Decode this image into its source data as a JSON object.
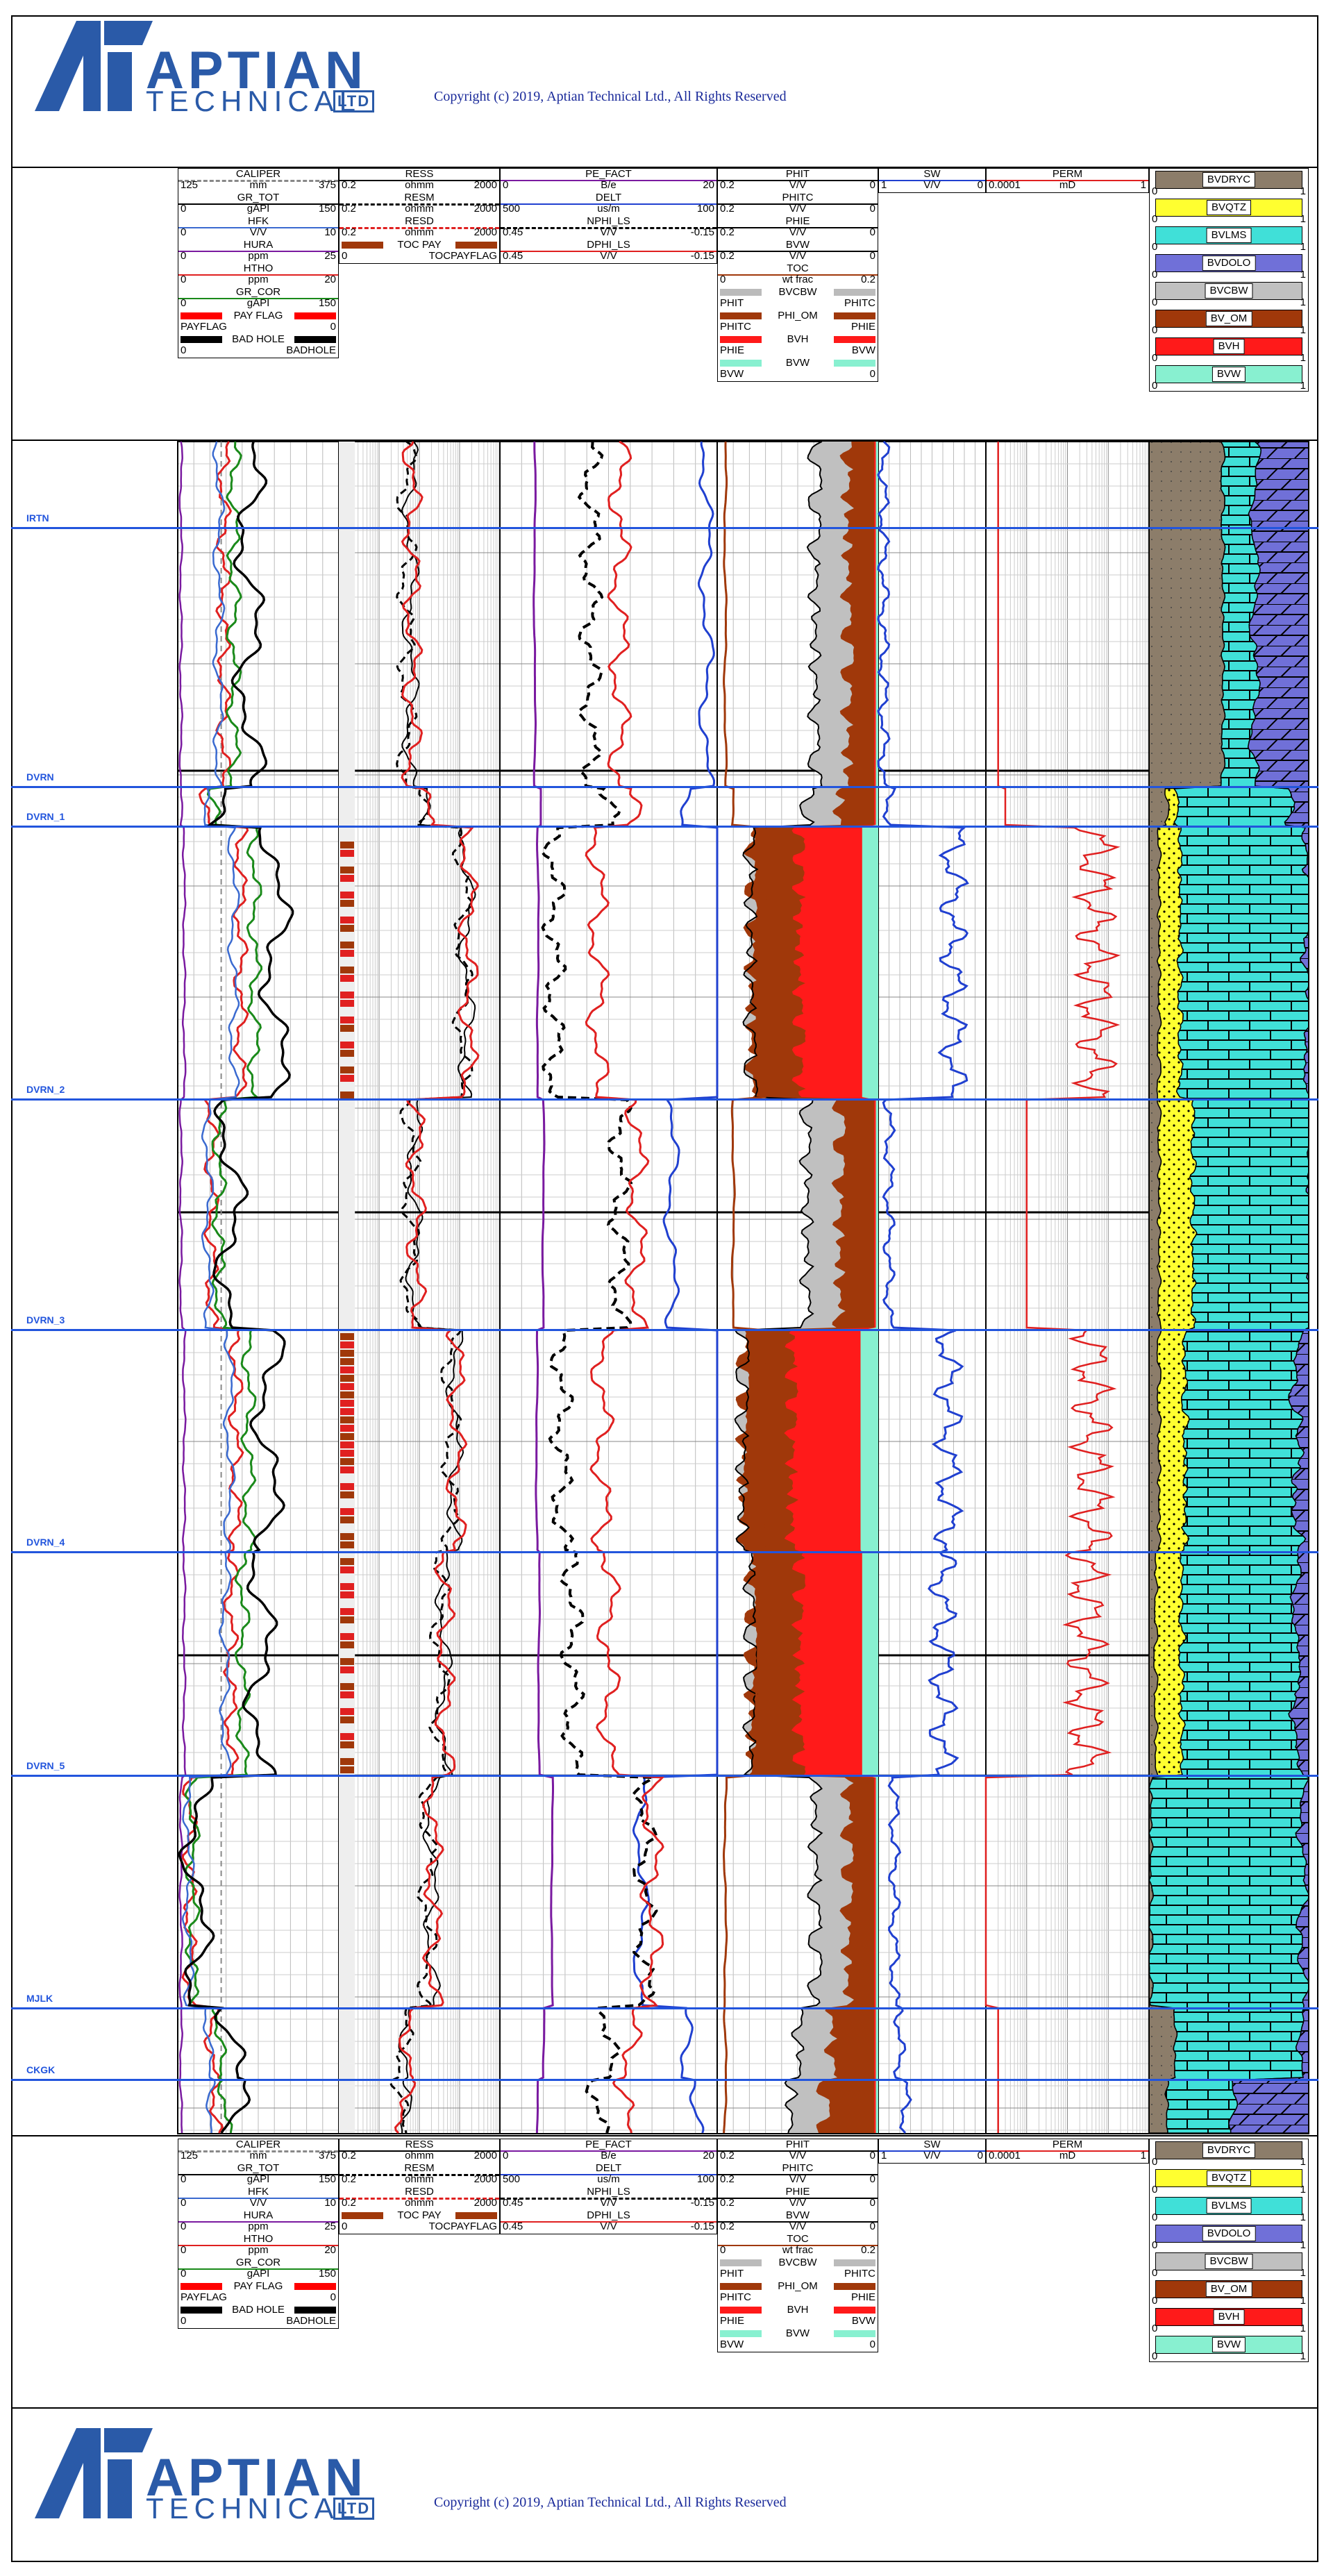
{
  "branding": {
    "logo_main": "APTIAN",
    "logo_sub": "TECHNICAL",
    "logo_ltd": "LTD",
    "copyright": "Copyright (c) 2019, Aptian Technical Ltd., All Rights Reserved",
    "colors": {
      "logo_blue": "#2a5aa8",
      "copyright_blue": "#1a2a9a"
    }
  },
  "tracks": [
    {
      "id": "t1",
      "curves": [
        {
          "name": "CALIPER",
          "lo": "125",
          "unit": "mm",
          "hi": "375",
          "color": "#888888",
          "style": "dash"
        },
        {
          "name": "GR_TOT",
          "lo": "0",
          "unit": "gAPI",
          "hi": "150",
          "color": "#000000",
          "style": "solid"
        },
        {
          "name": "HFK",
          "lo": "0",
          "unit": "V/V",
          "hi": "10",
          "color": "#3a6ad0",
          "style": "solid"
        },
        {
          "name": "HURA",
          "lo": "0",
          "unit": "ppm",
          "hi": "25",
          "color": "#7a1aa0",
          "style": "solid"
        },
        {
          "name": "HTHO",
          "lo": "0",
          "unit": "ppm",
          "hi": "20",
          "color": "#e02020",
          "style": "solid"
        },
        {
          "name": "GR_COR",
          "lo": "0",
          "unit": "gAPI",
          "hi": "150",
          "color": "#1a8a1a",
          "style": "solid"
        },
        {
          "name": "PAY FLAG",
          "lo": "PAYFLAG",
          "unit": "",
          "hi": "0",
          "color": "#ff0000",
          "style": "fill"
        },
        {
          "name": "BAD HOLE",
          "lo": "0",
          "unit": "",
          "hi": "BADHOLE",
          "color": "#000000",
          "style": "fill"
        }
      ]
    },
    {
      "id": "t2",
      "curves": [
        {
          "name": "RESS",
          "lo": "0.2",
          "unit": "ohmm",
          "hi": "2000",
          "color": "#000000",
          "style": "solid"
        },
        {
          "name": "RESM",
          "lo": "0.2",
          "unit": "ohmm",
          "hi": "2000",
          "color": "#000000",
          "style": "dash"
        },
        {
          "name": "RESD",
          "lo": "0.2",
          "unit": "ohmm",
          "hi": "2000",
          "color": "#e02020",
          "style": "dash"
        },
        {
          "name": "TOC PAY",
          "lo": "0",
          "unit": "",
          "hi": "TOCPAYFLAG",
          "color": "#a0380a",
          "style": "fill"
        }
      ]
    },
    {
      "id": "t3",
      "curves": [
        {
          "name": "PE_FACT",
          "lo": "0",
          "unit": "B/e",
          "hi": "20",
          "color": "#7a1aa0",
          "style": "solid"
        },
        {
          "name": "DELT",
          "lo": "500",
          "unit": "us/m",
          "hi": "100",
          "color": "#2040d0",
          "style": "solid"
        },
        {
          "name": "NPHI_LS",
          "lo": "0.45",
          "unit": "V/V",
          "hi": "-0.15",
          "color": "#000000",
          "style": "dash"
        },
        {
          "name": "DPHI_LS",
          "lo": "0.45",
          "unit": "V/V",
          "hi": "-0.15",
          "color": "#e02020",
          "style": "solid"
        }
      ]
    },
    {
      "id": "t4",
      "curves": [
        {
          "name": "PHIT",
          "lo": "0.2",
          "unit": "V/V",
          "hi": "0",
          "color": "#000000",
          "style": "solid"
        },
        {
          "name": "PHITC",
          "lo": "0.2",
          "unit": "V/V",
          "hi": "0",
          "color": "#000000",
          "style": "solid"
        },
        {
          "name": "PHIE",
          "lo": "0.2",
          "unit": "V/V",
          "hi": "0",
          "color": "#000000",
          "style": "solid"
        },
        {
          "name": "BVW",
          "lo": "0.2",
          "unit": "V/V",
          "hi": "0",
          "color": "#000000",
          "style": "solid"
        },
        {
          "name": "TOC",
          "lo": "0",
          "unit": "wt frac",
          "hi": "0.2",
          "color": "#a0380a",
          "style": "solid"
        },
        {
          "name": "BVCBW",
          "lo": "PHIT",
          "unit": "",
          "hi": "PHITC",
          "color": "#bbbbbb",
          "style": "fill"
        },
        {
          "name": "PHI_OM",
          "lo": "PHITC",
          "unit": "",
          "hi": "PHIE",
          "color": "#a0380a",
          "style": "fill"
        },
        {
          "name": "BVH",
          "lo": "PHIE",
          "unit": "",
          "hi": "BVW",
          "color": "#ff1a1a",
          "style": "fill"
        },
        {
          "name": "BVW",
          "lo": "BVW",
          "unit": "",
          "hi": "0",
          "color": "#88f0d0",
          "style": "fill"
        }
      ]
    },
    {
      "id": "t5",
      "curves": [
        {
          "name": "SW",
          "lo": "1",
          "unit": "V/V",
          "hi": "0",
          "color": "#2040d0",
          "style": "solid"
        }
      ]
    },
    {
      "id": "t6",
      "curves": [
        {
          "name": "PERM",
          "lo": "0.0001",
          "unit": "mD",
          "hi": "1",
          "color": "#e02020",
          "style": "solid"
        }
      ]
    }
  ],
  "lithology": [
    {
      "name": "BVDRYC",
      "lo": "0",
      "hi": "1",
      "color": "#8c7d6a",
      "pattern": "dots"
    },
    {
      "name": "BVQTZ",
      "lo": "0",
      "hi": "1",
      "color": "#ffff30",
      "pattern": "dots"
    },
    {
      "name": "BVLMS",
      "lo": "0",
      "hi": "1",
      "color": "#40e0d8",
      "pattern": "brick"
    },
    {
      "name": "BVDOLO",
      "lo": "0",
      "hi": "1",
      "color": "#7070d8",
      "pattern": "dolo"
    },
    {
      "name": "BVCBW",
      "lo": "0",
      "hi": "1",
      "color": "#c0c0c0",
      "pattern": "none"
    },
    {
      "name": "BV_OM",
      "lo": "0",
      "hi": "1",
      "color": "#a0380a",
      "pattern": "none"
    },
    {
      "name": "BVH",
      "lo": "0",
      "hi": "1",
      "color": "#ff1a1a",
      "pattern": "none"
    },
    {
      "name": "BVW",
      "lo": "0",
      "hi": "1",
      "color": "#88f0d0",
      "pattern": "none"
    }
  ],
  "formation_tops": [
    {
      "name": "IRTN"
    },
    {
      "name": "DVRN"
    },
    {
      "name": "DVRN_1"
    },
    {
      "name": "DVRN_2"
    },
    {
      "name": "DVRN_3"
    },
    {
      "name": "DVRN_4"
    },
    {
      "name": "DVRN_5"
    },
    {
      "name": "MJLK"
    },
    {
      "name": "CKGK"
    }
  ],
  "chart_data": {
    "type": "line",
    "title": "",
    "zones": [
      {
        "name": "IRTN",
        "gr": 95,
        "res": 12,
        "nphi": 0.2,
        "pe": 3.2,
        "phi": 0.02,
        "sw": 0.95,
        "perm": 0.0002,
        "pay": 0,
        "toc": 0.0,
        "lith": {
          "dryc": 0.45,
          "qtz": 0.0,
          "lms": 0.2,
          "dolo": 0.35
        }
      },
      {
        "name": "DVRN",
        "gr": 60,
        "res": 25,
        "nphi": 0.15,
        "pe": 3.8,
        "phi": 0.03,
        "sw": 0.9,
        "perm": 0.0003,
        "pay": 0,
        "toc": 0.01,
        "lith": {
          "dryc": 0.1,
          "qtz": 0.05,
          "lms": 0.7,
          "dolo": 0.15
        }
      },
      {
        "name": "DVRN_1",
        "gr": 130,
        "res": 300,
        "nphi": 0.3,
        "pe": 3.5,
        "phi": 0.1,
        "sw": 0.3,
        "perm": 0.05,
        "pay": 1,
        "toc": 0.05,
        "lith": {
          "dryc": 0.05,
          "qtz": 0.12,
          "lms": 0.8,
          "dolo": 0.03
        }
      },
      {
        "name": "DVRN_2",
        "gr": 70,
        "res": 15,
        "nphi": 0.12,
        "pe": 4.0,
        "phi": 0.03,
        "sw": 0.9,
        "perm": 0.001,
        "pay": 0,
        "toc": 0.01,
        "lith": {
          "dryc": 0.05,
          "qtz": 0.2,
          "lms": 0.75,
          "dolo": 0.0
        }
      },
      {
        "name": "DVRN_3",
        "gr": 120,
        "res": 150,
        "nphi": 0.28,
        "pe": 3.4,
        "phi": 0.11,
        "sw": 0.35,
        "perm": 0.04,
        "pay": 1,
        "toc": 0.05,
        "lith": {
          "dryc": 0.05,
          "qtz": 0.15,
          "lms": 0.7,
          "dolo": 0.1
        }
      },
      {
        "name": "DVRN_4",
        "gr": 110,
        "res": 80,
        "nphi": 0.25,
        "pe": 3.6,
        "phi": 0.1,
        "sw": 0.4,
        "perm": 0.03,
        "pay": 1,
        "toc": 0.04,
        "lith": {
          "dryc": 0.03,
          "qtz": 0.15,
          "lms": 0.72,
          "dolo": 0.1
        }
      },
      {
        "name": "DVRN_5",
        "gr": 25,
        "res": 40,
        "nphi": 0.05,
        "pe": 4.8,
        "phi": 0.02,
        "sw": 0.85,
        "perm": 0.0001,
        "pay": 0,
        "toc": 0.0,
        "lith": {
          "dryc": 0.0,
          "qtz": 0.0,
          "lms": 0.95,
          "dolo": 0.05
        }
      },
      {
        "name": "MJLK",
        "gr": 70,
        "res": 10,
        "nphi": 0.15,
        "pe": 4.0,
        "phi": 0.04,
        "sw": 0.8,
        "perm": 0.0002,
        "pay": 0,
        "toc": 0.0,
        "lith": {
          "dryc": 0.15,
          "qtz": 0.0,
          "lms": 0.8,
          "dolo": 0.05
        }
      },
      {
        "name": "CKGK",
        "gr": 80,
        "res": 8,
        "nphi": 0.18,
        "pe": 3.5,
        "phi": 0.05,
        "sw": 0.75,
        "perm": 0.0002,
        "pay": 0,
        "toc": 0.0,
        "lith": {
          "dryc": 0.1,
          "qtz": 0.0,
          "lms": 0.4,
          "dolo": 0.5
        }
      }
    ]
  }
}
